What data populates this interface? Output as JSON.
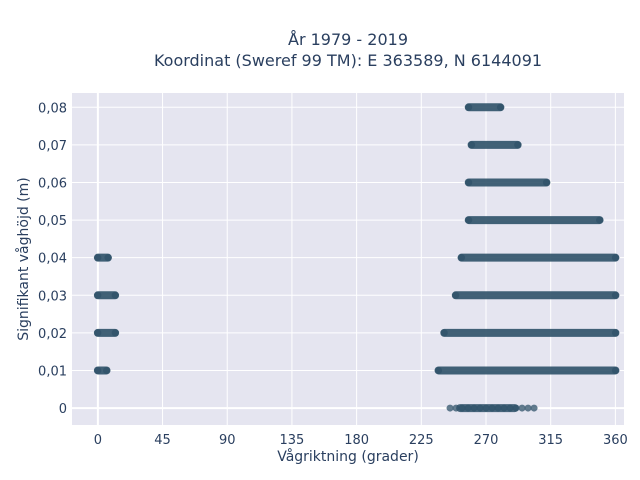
{
  "chart_data": {
    "type": "scatter",
    "title_line1": "År 1979 - 2019",
    "title_line2": "Koordinat (Sweref 99 TM): E 363589, N 6144091",
    "xlabel": "Vågriktning (grader)",
    "ylabel": "Signifikant våghöjd (m)",
    "xlim": [
      -18,
      366
    ],
    "ylim": [
      -0.0045,
      0.0838
    ],
    "x_ticks": [
      0,
      45,
      90,
      135,
      180,
      225,
      270,
      315,
      360
    ],
    "y_ticks": [
      0,
      0.01,
      0.02,
      0.03,
      0.04,
      0.05,
      0.06,
      0.07,
      0.08
    ],
    "y_tick_labels": [
      "0",
      "0,01",
      "0,02",
      "0,03",
      "0,04",
      "0,05",
      "0,06",
      "0,07",
      "0,08"
    ],
    "grid": true,
    "marker_color": "#2f5269",
    "background_color": "#e5e5f0",
    "series": [
      {
        "segments": [
          {
            "y": 0,
            "x_from": 245,
            "x_to": 305,
            "dense_from": 252,
            "dense_to": 290
          },
          {
            "y": 0.01,
            "x_from": 237,
            "x_to": 360
          },
          {
            "y": 0.01,
            "x_from": 0,
            "x_to": 6
          },
          {
            "y": 0.02,
            "x_from": 241,
            "x_to": 360
          },
          {
            "y": 0.02,
            "x_from": 0,
            "x_to": 12
          },
          {
            "y": 0.03,
            "x_from": 249,
            "x_to": 360
          },
          {
            "y": 0.03,
            "x_from": 0,
            "x_to": 12
          },
          {
            "y": 0.04,
            "x_from": 253,
            "x_to": 360
          },
          {
            "y": 0.04,
            "x_from": 0,
            "x_to": 7
          },
          {
            "y": 0.05,
            "x_from": 258,
            "x_to": 349
          },
          {
            "y": 0.06,
            "x_from": 258,
            "x_to": 312
          },
          {
            "y": 0.07,
            "x_from": 260,
            "x_to": 292
          },
          {
            "y": 0.08,
            "x_from": 258,
            "x_to": 280
          }
        ]
      }
    ]
  }
}
